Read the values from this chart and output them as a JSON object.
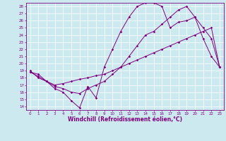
{
  "xlabel": "Windchill (Refroidissement éolien,°C)",
  "bg_color": "#cce9f0",
  "grid_color": "#ffffff",
  "line_color": "#800080",
  "xlim": [
    -0.5,
    23.5
  ],
  "ylim": [
    13.5,
    28.5
  ],
  "yticks": [
    14,
    15,
    16,
    17,
    18,
    19,
    20,
    21,
    22,
    23,
    24,
    25,
    26,
    27,
    28
  ],
  "xticks": [
    0,
    1,
    2,
    3,
    4,
    5,
    6,
    7,
    8,
    9,
    10,
    11,
    12,
    13,
    14,
    15,
    16,
    17,
    18,
    19,
    20,
    21,
    22,
    23
  ],
  "line1_x": [
    0,
    1,
    2,
    3,
    4,
    5,
    6,
    7,
    8,
    9,
    10,
    11,
    12,
    13,
    14,
    15,
    16,
    17,
    18,
    19,
    20,
    21,
    22,
    23
  ],
  "line1_y": [
    19.0,
    18.0,
    17.5,
    16.5,
    16.0,
    14.8,
    13.8,
    16.8,
    15.2,
    19.5,
    22.0,
    24.5,
    26.5,
    28.0,
    28.5,
    28.5,
    28.0,
    25.0,
    25.8,
    26.0,
    26.5,
    23.5,
    21.0,
    19.5
  ],
  "line2_x": [
    0,
    1,
    2,
    3,
    4,
    5,
    6,
    7,
    8,
    9,
    10,
    11,
    12,
    13,
    14,
    15,
    16,
    17,
    18,
    19,
    20,
    21,
    22,
    23
  ],
  "line2_y": [
    18.8,
    18.5,
    17.5,
    17.0,
    17.2,
    17.5,
    17.8,
    18.0,
    18.3,
    18.5,
    19.0,
    19.5,
    20.0,
    20.5,
    21.0,
    21.5,
    22.0,
    22.5,
    23.0,
    23.5,
    24.0,
    24.5,
    25.0,
    19.5
  ],
  "line3_x": [
    0,
    1,
    2,
    3,
    4,
    5,
    6,
    7,
    8,
    9,
    10,
    11,
    12,
    13,
    14,
    15,
    16,
    17,
    18,
    19,
    20,
    21,
    22,
    23
  ],
  "line3_y": [
    18.8,
    18.2,
    17.5,
    16.8,
    16.5,
    16.0,
    15.8,
    16.5,
    17.0,
    17.5,
    18.5,
    19.5,
    21.0,
    22.5,
    24.0,
    24.5,
    25.5,
    26.5,
    27.5,
    28.0,
    26.5,
    25.0,
    23.5,
    19.5
  ],
  "tick_fontsize": 4.0,
  "xlabel_fontsize": 5.5
}
